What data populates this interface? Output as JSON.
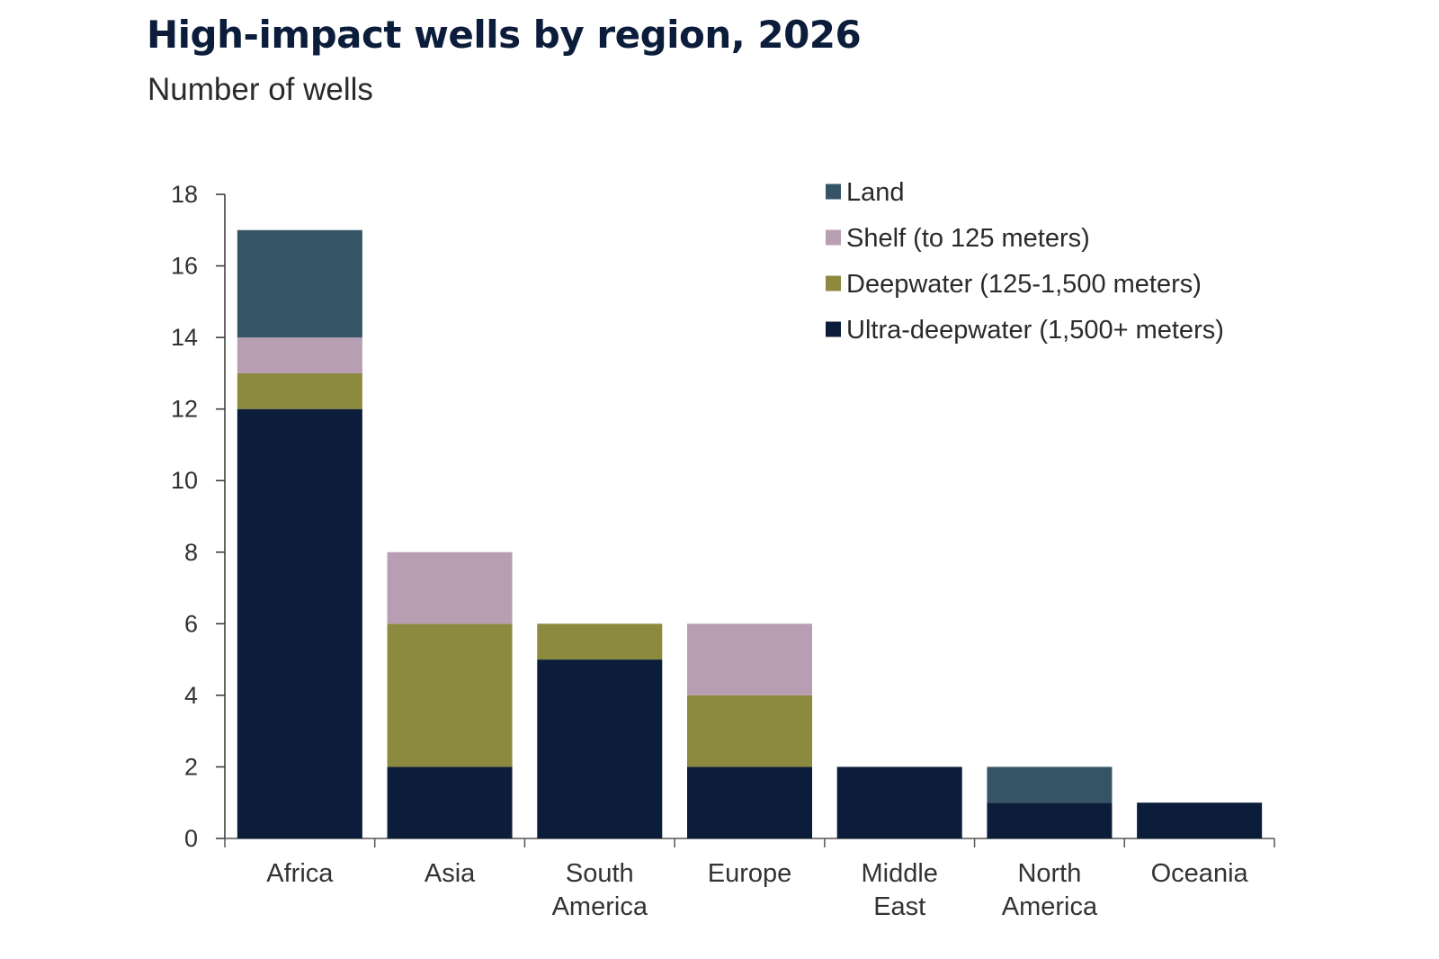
{
  "header": {
    "title": "High-impact wells by region, 2026",
    "subtitle": "Number of wells"
  },
  "chart_data": {
    "type": "bar",
    "stacked": true,
    "title": "High-impact wells by region, 2026",
    "subtitle": "Number of wells",
    "xlabel": "",
    "ylabel": "",
    "ylim": [
      0,
      18
    ],
    "yticks": [
      0,
      2,
      4,
      6,
      8,
      10,
      12,
      14,
      16,
      18
    ],
    "grid": false,
    "legend_position": "top-right",
    "categories": [
      [
        "Africa"
      ],
      [
        "Asia"
      ],
      [
        "South",
        "America"
      ],
      [
        "Europe"
      ],
      [
        "Middle",
        "East"
      ],
      [
        "North",
        "America"
      ],
      [
        "Oceania"
      ]
    ],
    "series": [
      {
        "name": "Ultra-deepwater (1,500+ meters)",
        "color": "#0b1d3a",
        "values": [
          12,
          2,
          5,
          2,
          2,
          1,
          1
        ]
      },
      {
        "name": "Deepwater (125-1,500 meters)",
        "color": "#8c8a3e",
        "values": [
          1,
          4,
          1,
          2,
          0,
          0,
          0
        ]
      },
      {
        "name": "Shelf (to 125 meters)",
        "color": "#b89eb2",
        "values": [
          1,
          2,
          0,
          2,
          0,
          0,
          0
        ]
      },
      {
        "name": "Land",
        "color": "#355566",
        "values": [
          3,
          0,
          0,
          0,
          0,
          1,
          0
        ]
      }
    ],
    "legend_order": [
      "Land",
      "Shelf (to 125 meters)",
      "Deepwater (125-1,500 meters)",
      "Ultra-deepwater (1,500+ meters)"
    ]
  }
}
